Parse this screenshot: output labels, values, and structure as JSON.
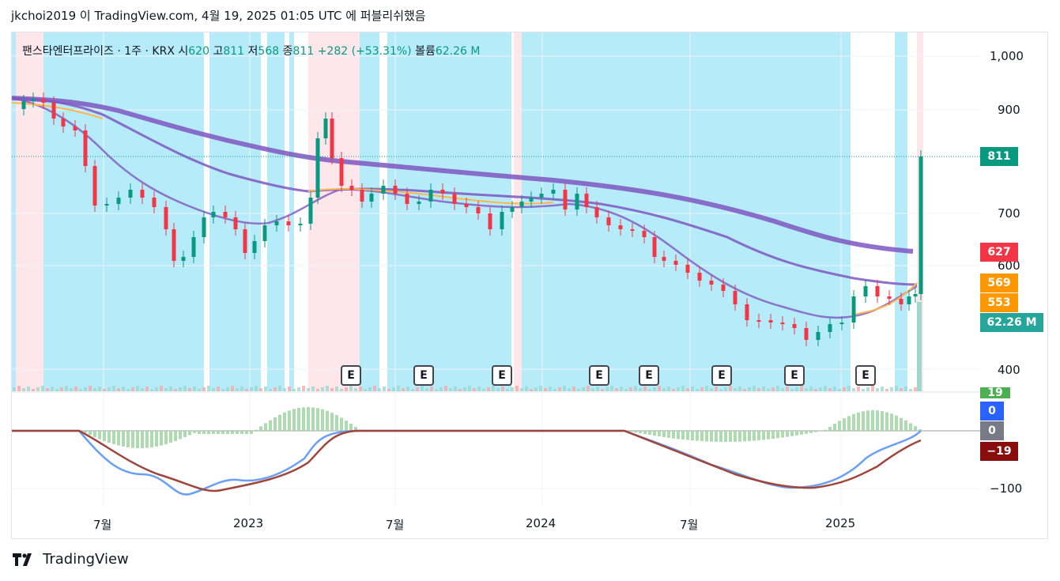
{
  "header": {
    "text": "jkchoi2019 이 TradingView.com, 4월 19, 2025 01:05 UTC 에 퍼블리쉬했음"
  },
  "legend": {
    "symbol": "팬스타엔터프라이즈 · 1주 · KRX",
    "o_label": "시",
    "o_value": "620",
    "h_label": "고",
    "h_value": "811",
    "l_label": "저",
    "l_value": "568",
    "c_label": "종",
    "c_value": "811",
    "change": "+282 (+53.31%)",
    "vol_label": "볼륨",
    "vol_value": "62.26 M"
  },
  "price_axis": [
    "1,000",
    "900",
    "700",
    "600",
    "400"
  ],
  "price_tags": [
    {
      "value": "811",
      "color": "#089981"
    },
    {
      "value": "627",
      "color": "#f23645"
    },
    {
      "value": "569",
      "color": "#ff9800"
    },
    {
      "value": "553",
      "color": "#ff9800"
    },
    {
      "value": "62.26 M",
      "color": "#26a69a"
    }
  ],
  "indicator_axis": [
    "−100"
  ],
  "indicator_tags": [
    {
      "value": "19",
      "color": "#4caf50"
    },
    {
      "value": "0",
      "color": "#2962ff"
    },
    {
      "value": "0",
      "color": "#787b86"
    },
    {
      "value": "−19",
      "color": "#880e0e"
    }
  ],
  "time_axis": [
    "7월",
    "2023",
    "7월",
    "2024",
    "7월",
    "2025"
  ],
  "earnings_label": "E",
  "footer": {
    "brand": "TradingView"
  },
  "colors": {
    "up": "#089981",
    "down": "#f23645",
    "ma_purple": "#7e57c2",
    "ma_orange": "#ffb74d",
    "bg_blue": "#b2ebf9",
    "bg_pink": "#fde7ea"
  },
  "chart_data": {
    "type": "candlestick",
    "title": "팬스타엔터프라이즈 · 1주 · KRX",
    "ylim": [
      380,
      1030
    ],
    "last": {
      "open": 620,
      "high": 811,
      "low": 568,
      "close": 811,
      "volume": "62.26M"
    },
    "ma_values": {
      "ma_long": 627,
      "ma_mid": 569,
      "ma_short": 553
    }
  }
}
